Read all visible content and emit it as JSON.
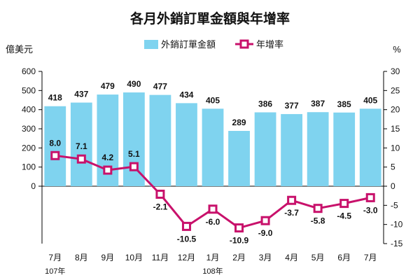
{
  "chart_data": {
    "type": "bar",
    "title": "各月外銷訂單金額與年增率",
    "y_left_unit": "億美元",
    "y_right_unit": "%",
    "categories": [
      "7月",
      "8月",
      "9月",
      "10月",
      "11月",
      "12月",
      "1月",
      "2月",
      "3月",
      "4月",
      "5月",
      "6月",
      "7月"
    ],
    "year_labels": [
      {
        "index": 0,
        "text": "107年"
      },
      {
        "index": 6,
        "text": "108年"
      }
    ],
    "series": [
      {
        "name": "外銷訂單金額",
        "type": "bar",
        "axis": "left",
        "color": "#7fd3ef",
        "values": [
          418,
          437,
          479,
          490,
          477,
          434,
          405,
          289,
          386,
          377,
          387,
          385,
          405
        ]
      },
      {
        "name": "年增率",
        "type": "line",
        "axis": "right",
        "color": "#c8116b",
        "values": [
          8.0,
          7.1,
          4.2,
          5.1,
          -2.1,
          -10.5,
          -6.0,
          -10.9,
          -9.0,
          -3.7,
          -5.8,
          -4.5,
          -3.0
        ]
      }
    ],
    "bar_labels": [
      "418",
      "437",
      "479",
      "490",
      "477",
      "434",
      "405",
      "289",
      "386",
      "377",
      "387",
      "385",
      "405"
    ],
    "line_labels": [
      "8.0",
      "7.1",
      "4.2",
      "5.1",
      "-2.1",
      "-10.5",
      "-6.0",
      "-10.9",
      "-9.0",
      "-3.7",
      "-5.8",
      "-4.5",
      "-3.0"
    ],
    "y_left_ticks": [
      0,
      100,
      200,
      300,
      400,
      500,
      600
    ],
    "y_left_tick_labels": [
      "0",
      "100",
      "200",
      "300",
      "400",
      "500",
      "600"
    ],
    "y_right_ticks": [
      -15,
      -10,
      -5,
      0,
      5,
      10,
      15,
      20,
      25,
      30
    ],
    "y_right_tick_labels": [
      "-15",
      "-10",
      "-5",
      "0",
      "5",
      "10",
      "15",
      "20",
      "25",
      "30"
    ],
    "ylim_left": [
      0,
      600
    ],
    "ylim_right": [
      -15,
      30
    ],
    "legend_position": "top-center",
    "grid": false
  }
}
